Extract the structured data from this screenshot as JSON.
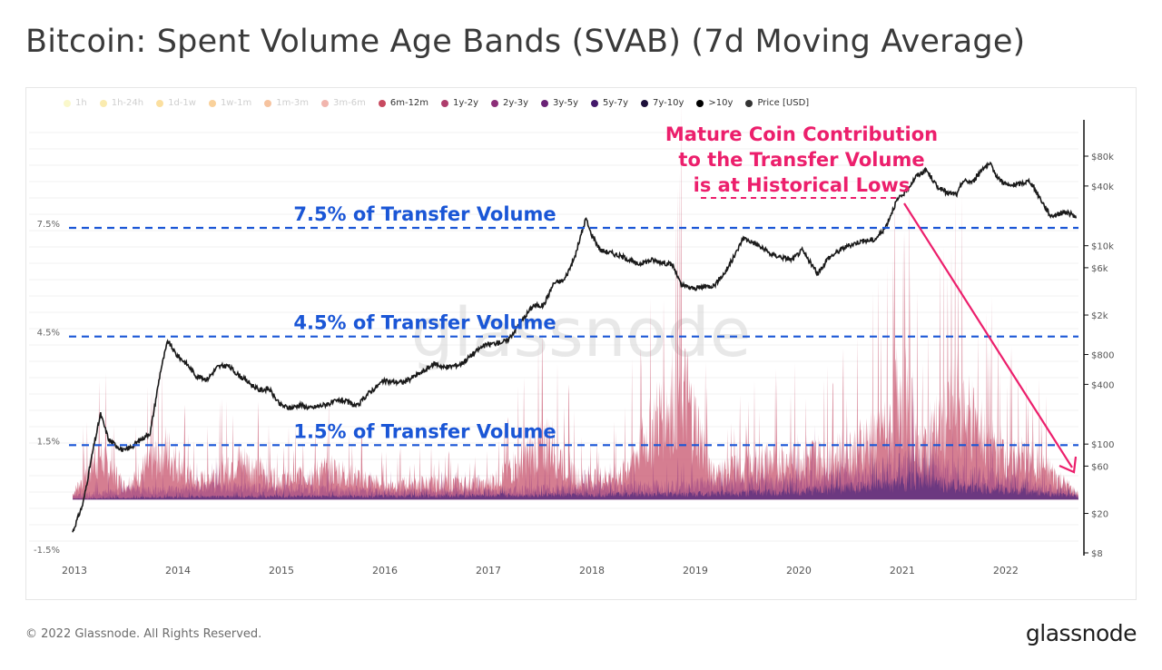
{
  "page": {
    "title": "Bitcoin: Spent Volume Age Bands (SVAB) (7d Moving Average)",
    "copyright": "© 2022 Glassnode. All Rights Reserved.",
    "logo": "glassnode",
    "watermark": "glassnode"
  },
  "legend": [
    {
      "label": "1h",
      "color": "#f3ef8c",
      "active": false
    },
    {
      "label": "1h-24h",
      "color": "#f5d34e",
      "active": false
    },
    {
      "label": "1d-1w",
      "color": "#f6b92b",
      "active": false
    },
    {
      "label": "1w-1m",
      "color": "#f29a22",
      "active": false
    },
    {
      "label": "1m-3m",
      "color": "#ea7a2a",
      "active": false
    },
    {
      "label": "3m-6m",
      "color": "#e05c4a",
      "active": false
    },
    {
      "label": "6m-12m",
      "color": "#c84a60",
      "active": true
    },
    {
      "label": "1y-2y",
      "color": "#ae3d6c",
      "active": true
    },
    {
      "label": "2y-3y",
      "color": "#8c2e78",
      "active": true
    },
    {
      "label": "3y-5y",
      "color": "#6a2276",
      "active": true
    },
    {
      "label": "5y-7y",
      "color": "#43186a",
      "active": true
    },
    {
      "label": "7y-10y",
      "color": "#1c0f3a",
      "active": true
    },
    {
      "label": ">10y",
      "color": "#000000",
      "active": true
    },
    {
      "label": "Price [USD]",
      "color": "#333333",
      "active": true
    }
  ],
  "annotations": {
    "callout": [
      "Mature Coin Contribution",
      "to the Transfer Volume",
      "is at Historical Lows"
    ],
    "callout_color": "#ec1f6c",
    "threshold_color": "#1a56d6",
    "thresholds": [
      {
        "value": 7.5,
        "label": "7.5% of Transfer Volume"
      },
      {
        "value": 4.5,
        "label": "4.5% of Transfer Volume"
      },
      {
        "value": 1.5,
        "label": "1.5% of Transfer Volume"
      }
    ]
  },
  "chart_data": {
    "type": "area",
    "title": "Bitcoin: Spent Volume Age Bands (SVAB) (7d Moving Average)",
    "x_ticks": [
      "2013",
      "2014",
      "2015",
      "2016",
      "2017",
      "2018",
      "2019",
      "2020",
      "2021",
      "2022"
    ],
    "x_range": [
      2013.0,
      2022.72
    ],
    "y_left": {
      "ticks": [
        "7.5%",
        "4.5%",
        "1.5%",
        "-1.5%"
      ],
      "tick_values": [
        7.5,
        4.5,
        1.5,
        -1.5
      ],
      "range": [
        -1.5,
        7.5
      ]
    },
    "y_right": {
      "ticks": [
        "$80k",
        "$40k",
        "$10k",
        "$6k",
        "$2k",
        "$800",
        "$400",
        "$100",
        "$60",
        "$20",
        "$8"
      ],
      "tick_values": [
        80000,
        40000,
        10000,
        6000,
        2000,
        800,
        400,
        100,
        60,
        20,
        8
      ],
      "scale": "log"
    },
    "series": [
      {
        "name": "Price [USD]",
        "axis": "right",
        "points": [
          [
            2013.0,
            13
          ],
          [
            2013.1,
            25
          ],
          [
            2013.2,
            90
          ],
          [
            2013.27,
            200
          ],
          [
            2013.35,
            110
          ],
          [
            2013.5,
            85
          ],
          [
            2013.6,
            100
          ],
          [
            2013.75,
            130
          ],
          [
            2013.85,
            550
          ],
          [
            2013.92,
            1100
          ],
          [
            2014.0,
            800
          ],
          [
            2014.1,
            650
          ],
          [
            2014.2,
            480
          ],
          [
            2014.3,
            450
          ],
          [
            2014.4,
            600
          ],
          [
            2014.5,
            620
          ],
          [
            2014.6,
            500
          ],
          [
            2014.7,
            420
          ],
          [
            2014.8,
            350
          ],
          [
            2014.9,
            360
          ],
          [
            2015.0,
            250
          ],
          [
            2015.1,
            230
          ],
          [
            2015.2,
            250
          ],
          [
            2015.3,
            230
          ],
          [
            2015.5,
            260
          ],
          [
            2015.6,
            280
          ],
          [
            2015.75,
            240
          ],
          [
            2015.85,
            320
          ],
          [
            2016.0,
            430
          ],
          [
            2016.2,
            420
          ],
          [
            2016.4,
            550
          ],
          [
            2016.5,
            650
          ],
          [
            2016.6,
            590
          ],
          [
            2016.75,
            640
          ],
          [
            2016.95,
            950
          ],
          [
            2017.0,
            1000
          ],
          [
            2017.2,
            1100
          ],
          [
            2017.35,
            1800
          ],
          [
            2017.45,
            2500
          ],
          [
            2017.55,
            2500
          ],
          [
            2017.65,
            4200
          ],
          [
            2017.75,
            4500
          ],
          [
            2017.85,
            7500
          ],
          [
            2017.96,
            19000
          ],
          [
            2018.0,
            14000
          ],
          [
            2018.1,
            9000
          ],
          [
            2018.2,
            8500
          ],
          [
            2018.35,
            7500
          ],
          [
            2018.45,
            6500
          ],
          [
            2018.6,
            7200
          ],
          [
            2018.8,
            6400
          ],
          [
            2018.88,
            4000
          ],
          [
            2019.0,
            3700
          ],
          [
            2019.2,
            4000
          ],
          [
            2019.3,
            5300
          ],
          [
            2019.4,
            8000
          ],
          [
            2019.48,
            12000
          ],
          [
            2019.6,
            10500
          ],
          [
            2019.75,
            8200
          ],
          [
            2019.95,
            7200
          ],
          [
            2020.05,
            9000
          ],
          [
            2020.2,
            5200
          ],
          [
            2020.3,
            7500
          ],
          [
            2020.45,
            9500
          ],
          [
            2020.6,
            11000
          ],
          [
            2020.75,
            11500
          ],
          [
            2020.85,
            15000
          ],
          [
            2020.96,
            28000
          ],
          [
            2021.05,
            35000
          ],
          [
            2021.15,
            50000
          ],
          [
            2021.25,
            58000
          ],
          [
            2021.35,
            40000
          ],
          [
            2021.45,
            34000
          ],
          [
            2021.55,
            33000
          ],
          [
            2021.6,
            45000
          ],
          [
            2021.7,
            44000
          ],
          [
            2021.8,
            62000
          ],
          [
            2021.87,
            65000
          ],
          [
            2021.95,
            47000
          ],
          [
            2022.05,
            40000
          ],
          [
            2022.15,
            42000
          ],
          [
            2022.25,
            45000
          ],
          [
            2022.35,
            30000
          ],
          [
            2022.45,
            20000
          ],
          [
            2022.6,
            22000
          ],
          [
            2022.7,
            19500
          ]
        ]
      },
      {
        "name": "6m-12m",
        "axis": "left",
        "points": [
          [
            2013.0,
            0.3
          ],
          [
            2013.25,
            2.8
          ],
          [
            2013.5,
            0.8
          ],
          [
            2013.9,
            3.0
          ],
          [
            2014.2,
            1.0
          ],
          [
            2014.6,
            2.4
          ],
          [
            2015.0,
            1.2
          ],
          [
            2015.5,
            1.8
          ],
          [
            2016.0,
            0.9
          ],
          [
            2016.6,
            1.0
          ],
          [
            2017.0,
            0.9
          ],
          [
            2017.6,
            3.5
          ],
          [
            2017.9,
            1.2
          ],
          [
            2018.3,
            1.5
          ],
          [
            2018.88,
            7.0
          ],
          [
            2019.2,
            1.5
          ],
          [
            2019.6,
            2.2
          ],
          [
            2020.0,
            2.5
          ],
          [
            2020.5,
            2.8
          ],
          [
            2020.9,
            4.5
          ],
          [
            2021.0,
            7.3
          ],
          [
            2021.2,
            3.0
          ],
          [
            2021.55,
            6.0
          ],
          [
            2021.8,
            4.0
          ],
          [
            2022.0,
            2.8
          ],
          [
            2022.3,
            2.4
          ],
          [
            2022.7,
            0.4
          ]
        ]
      },
      {
        "name": "1y-2y",
        "axis": "left",
        "points": [
          [
            2013.0,
            0.2
          ],
          [
            2013.5,
            0.6
          ],
          [
            2014.0,
            0.6
          ],
          [
            2014.5,
            0.8
          ],
          [
            2015.0,
            0.7
          ],
          [
            2016.0,
            0.5
          ],
          [
            2017.0,
            0.5
          ],
          [
            2017.9,
            0.7
          ],
          [
            2018.5,
            0.8
          ],
          [
            2019.0,
            0.9
          ],
          [
            2020.0,
            1.2
          ],
          [
            2020.9,
            1.8
          ],
          [
            2021.1,
            2.4
          ],
          [
            2021.5,
            1.6
          ],
          [
            2022.0,
            1.2
          ],
          [
            2022.7,
            0.3
          ]
        ]
      },
      {
        "name": "3y-5y",
        "axis": "left",
        "points": [
          [
            2013.0,
            0.05
          ],
          [
            2014.0,
            0.15
          ],
          [
            2015.0,
            0.2
          ],
          [
            2016.0,
            0.2
          ],
          [
            2017.0,
            0.25
          ],
          [
            2018.0,
            0.3
          ],
          [
            2019.0,
            0.35
          ],
          [
            2020.0,
            0.5
          ],
          [
            2020.9,
            0.9
          ],
          [
            2021.1,
            1.2
          ],
          [
            2021.6,
            0.8
          ],
          [
            2022.0,
            0.6
          ],
          [
            2022.7,
            0.2
          ]
        ]
      }
    ]
  }
}
